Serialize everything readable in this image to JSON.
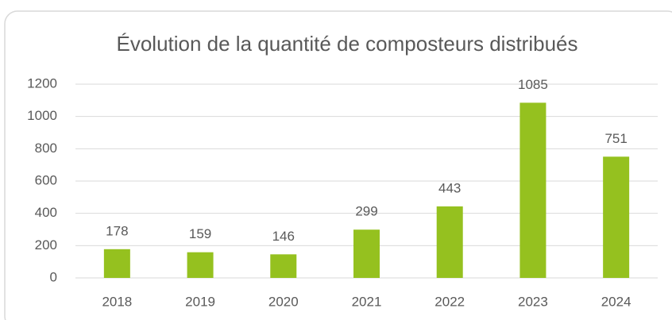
{
  "chart_data": {
    "type": "bar",
    "title": "Évolution de la quantité de composteurs distribués",
    "categories": [
      "2018",
      "2019",
      "2020",
      "2021",
      "2022",
      "2023",
      "2024"
    ],
    "values": [
      178,
      159,
      146,
      299,
      443,
      1085,
      751
    ],
    "color": "#95c11f",
    "ylim": [
      0,
      1200
    ],
    "yticks": [
      0,
      200,
      400,
      600,
      800,
      1000,
      1200
    ],
    "grid": true
  }
}
